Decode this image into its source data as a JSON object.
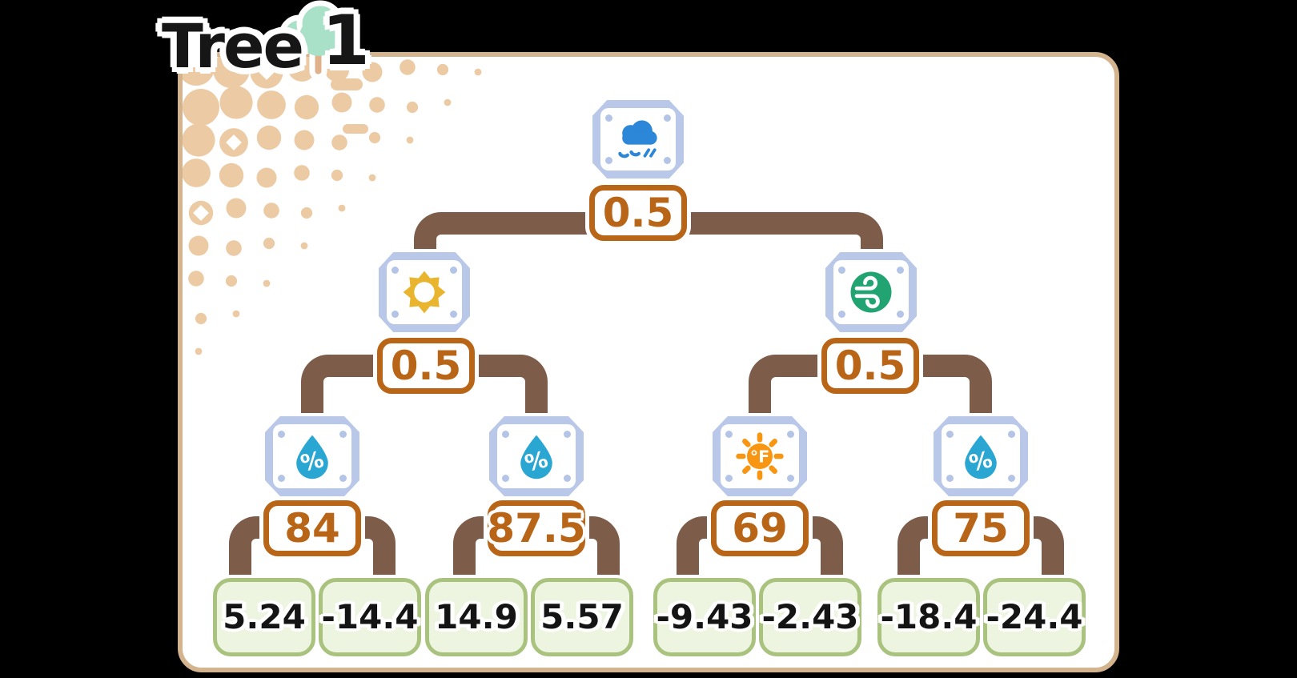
{
  "title": {
    "text": "Tree",
    "index": "1"
  },
  "tree": {
    "feature": "rain-cloud",
    "threshold": "0.5",
    "left": {
      "feature": "sun",
      "threshold": "0.5",
      "left": {
        "feature": "humidity",
        "unit_label": "%",
        "threshold": "84",
        "leaf_left": "5.24",
        "leaf_right": "-14.4"
      },
      "right": {
        "feature": "humidity",
        "unit_label": "%",
        "threshold": "87.5",
        "leaf_left": "14.9",
        "leaf_right": "5.57"
      }
    },
    "right": {
      "feature": "wind",
      "threshold": "0.5",
      "left": {
        "feature": "temperature",
        "unit_label": "°F",
        "threshold": "69",
        "leaf_left": "-9.43",
        "leaf_right": "-2.43"
      },
      "right": {
        "feature": "humidity",
        "unit_label": "%",
        "threshold": "75",
        "leaf_left": "-18.4",
        "leaf_right": "-24.4"
      }
    }
  },
  "colors": {
    "background": "#000000",
    "panel_border": "#d3b48e",
    "connector_brown": "#7d5c4a",
    "threshold_accent": "#b96518",
    "plaque_frame": "#b9c8e8",
    "leaf_background": "#edf5e1",
    "leaf_border": "#a9c37f",
    "rain_blue": "#2d87d8",
    "sun_yellow": "#e9b52f",
    "wind_green": "#21a471",
    "humidity_blue": "#2aa6d2",
    "temperature_orange": "#f89511",
    "halftone_tan": "#eccaa4",
    "title_tree_mint": "#a8e0c8"
  }
}
